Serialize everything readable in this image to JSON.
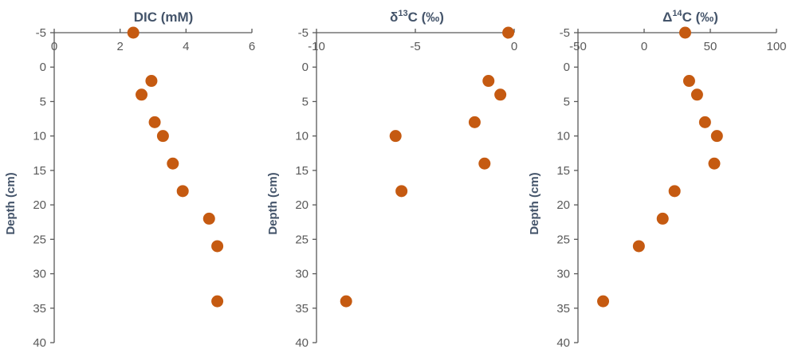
{
  "chart_data": [
    {
      "type": "scatter",
      "title_main": "DIC (mM)",
      "title_sup": "",
      "title_rest": "",
      "ylabel": "Depth  (cm)",
      "xlim": [
        0,
        6
      ],
      "ylim": [
        -5,
        40
      ],
      "x_ticks": [
        "0",
        "2",
        "4",
        "6"
      ],
      "y_ticks": [
        "-5",
        "0",
        "5",
        "10",
        "15",
        "20",
        "25",
        "30",
        "35",
        "40"
      ],
      "points": [
        {
          "x": 2.4,
          "y": -5
        },
        {
          "x": 2.95,
          "y": 2
        },
        {
          "x": 2.65,
          "y": 4
        },
        {
          "x": 3.05,
          "y": 8
        },
        {
          "x": 3.3,
          "y": 10
        },
        {
          "x": 3.6,
          "y": 14
        },
        {
          "x": 3.9,
          "y": 18
        },
        {
          "x": 4.7,
          "y": 22
        },
        {
          "x": 4.95,
          "y": 26
        },
        {
          "x": 4.95,
          "y": 34
        }
      ]
    },
    {
      "type": "scatter",
      "title_main": "δ",
      "title_sup": "13",
      "title_rest": "C (‰)",
      "ylabel": "Depth  (cm)",
      "xlim": [
        -10,
        0
      ],
      "ylim": [
        -5,
        40
      ],
      "x_ticks": [
        "-10",
        "-5",
        "0"
      ],
      "y_ticks": [
        "-5",
        "0",
        "5",
        "10",
        "15",
        "20",
        "25",
        "30",
        "35",
        "40"
      ],
      "points": [
        {
          "x": -0.3,
          "y": -5
        },
        {
          "x": -1.3,
          "y": 2
        },
        {
          "x": -0.7,
          "y": 4
        },
        {
          "x": -2.0,
          "y": 8
        },
        {
          "x": -6.0,
          "y": 10
        },
        {
          "x": -1.5,
          "y": 14
        },
        {
          "x": -5.7,
          "y": 18
        },
        {
          "x": -8.5,
          "y": 34
        }
      ]
    },
    {
      "type": "scatter",
      "title_main": "Δ",
      "title_sup": "14",
      "title_rest": "C (‰)",
      "ylabel": "Depth  (cm)",
      "xlim": [
        -50,
        100
      ],
      "ylim": [
        -5,
        40
      ],
      "x_ticks": [
        "-50",
        "0",
        "50",
        "100"
      ],
      "y_ticks": [
        "-5",
        "0",
        "5",
        "10",
        "15",
        "20",
        "25",
        "30",
        "35",
        "40"
      ],
      "points": [
        {
          "x": 31,
          "y": -5
        },
        {
          "x": 34,
          "y": 2
        },
        {
          "x": 40,
          "y": 4
        },
        {
          "x": 46,
          "y": 8
        },
        {
          "x": 55,
          "y": 10
        },
        {
          "x": 53,
          "y": 14
        },
        {
          "x": 23,
          "y": 18
        },
        {
          "x": 14,
          "y": 22
        },
        {
          "x": -4,
          "y": 26
        },
        {
          "x": -31,
          "y": 34
        }
      ]
    }
  ]
}
